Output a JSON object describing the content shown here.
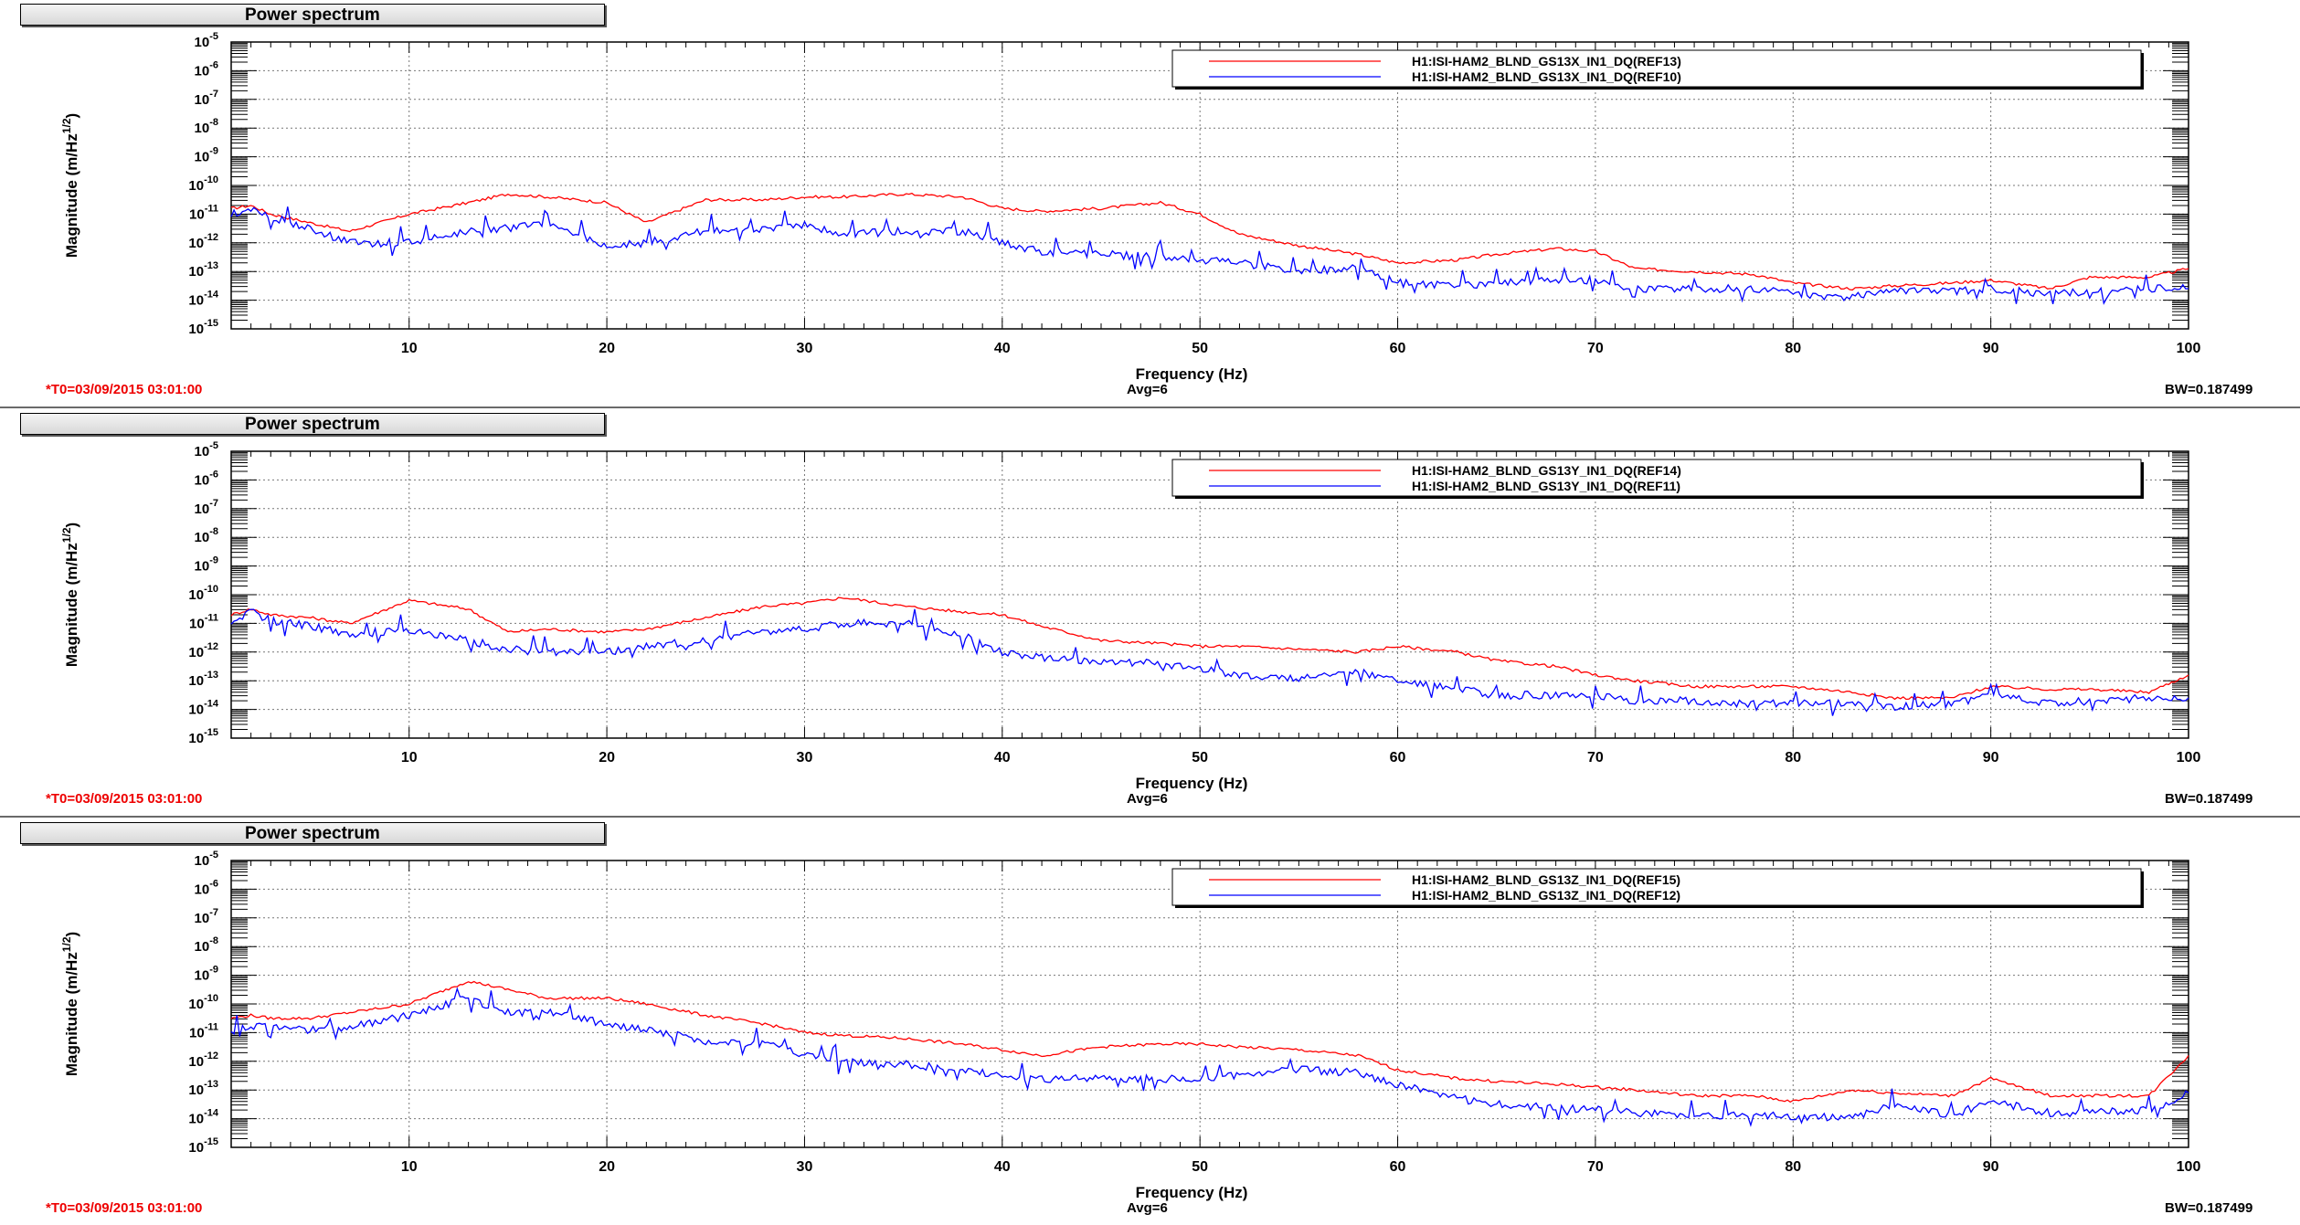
{
  "panels": [
    {
      "title": "Power spectrum",
      "footer": {
        "t0": "*T0=03/09/2015 03:01:00",
        "avg": "Avg=6",
        "bw": "BW=0.187499"
      },
      "series_names": [
        "H1:ISI-HAM2_BLND_GS13X_IN1_DQ(REF13)",
        "H1:ISI-HAM2_BLND_GS13X_IN1_DQ(REF10)"
      ]
    },
    {
      "title": "Power spectrum",
      "footer": {
        "t0": "*T0=03/09/2015 03:01:00",
        "avg": "Avg=6",
        "bw": "BW=0.187499"
      },
      "series_names": [
        "H1:ISI-HAM2_BLND_GS13Y_IN1_DQ(REF14)",
        "H1:ISI-HAM2_BLND_GS13Y_IN1_DQ(REF11)"
      ]
    },
    {
      "title": "Power spectrum",
      "footer": {
        "t0": "*T0=03/09/2015 03:01:00",
        "avg": "Avg=6",
        "bw": "BW=0.187499"
      },
      "series_names": [
        "H1:ISI-HAM2_BLND_GS13Z_IN1_DQ(REF15)",
        "H1:ISI-HAM2_BLND_GS13Z_IN1_DQ(REF12)"
      ]
    }
  ],
  "chart_data": [
    {
      "type": "line",
      "title": "Power spectrum",
      "xlabel": "Frequency (Hz)",
      "ylabel": "Magnitude (m/Hz^1/2)",
      "xlim": [
        1,
        100
      ],
      "ylim_exp": [
        -15,
        -5
      ],
      "yscale": "log",
      "grid": true,
      "legend": "top-right",
      "x_ticks": [
        10,
        20,
        30,
        40,
        50,
        60,
        70,
        80,
        90,
        100
      ],
      "y_tick_labels": [
        "10-15",
        "10-14",
        "10-13",
        "10-12",
        "10-11",
        "10-10",
        "10-9",
        "10-8",
        "10-7",
        "10-6",
        "10-5"
      ],
      "x": [
        1,
        2,
        3,
        5,
        7,
        10,
        13,
        15,
        17,
        20,
        22,
        25,
        28,
        30,
        32,
        35,
        38,
        40,
        42,
        45,
        48,
        50,
        52,
        55,
        58,
        60,
        63,
        65,
        68,
        70,
        72,
        75,
        78,
        80,
        83,
        85,
        88,
        90,
        93,
        95,
        98,
        100
      ],
      "series": [
        {
          "name": "H1:ISI-HAM2_BLND_GS13X_IN1_DQ(REF13)",
          "color": "#ff0000",
          "log10_values": [
            -10.8,
            -10.7,
            -11.0,
            -11.3,
            -11.6,
            -11.0,
            -10.6,
            -10.3,
            -10.4,
            -10.6,
            -11.3,
            -10.5,
            -10.5,
            -10.4,
            -10.4,
            -10.3,
            -10.4,
            -10.8,
            -10.9,
            -10.8,
            -10.6,
            -11.0,
            -11.7,
            -12.1,
            -12.4,
            -12.7,
            -12.6,
            -12.4,
            -12.2,
            -12.3,
            -12.9,
            -13.0,
            -13.1,
            -13.4,
            -13.6,
            -13.5,
            -13.4,
            -13.3,
            -13.6,
            -13.2,
            -13.2,
            -12.9
          ]
        },
        {
          "name": "H1:ISI-HAM2_BLND_GS13X_IN1_DQ(REF10)",
          "color": "#0000ff",
          "log10_values": [
            -11.0,
            -10.8,
            -11.1,
            -11.5,
            -12.0,
            -12.0,
            -11.6,
            -11.5,
            -11.3,
            -12.1,
            -12.0,
            -11.6,
            -11.5,
            -11.4,
            -11.7,
            -11.6,
            -11.6,
            -12.0,
            -12.3,
            -12.4,
            -12.5,
            -12.6,
            -12.7,
            -13.0,
            -12.9,
            -13.4,
            -13.5,
            -13.4,
            -13.3,
            -13.3,
            -13.6,
            -13.6,
            -13.6,
            -13.8,
            -13.9,
            -13.7,
            -13.7,
            -13.6,
            -13.8,
            -13.7,
            -13.6,
            -13.6
          ]
        }
      ]
    },
    {
      "type": "line",
      "title": "Power spectrum",
      "xlabel": "Frequency (Hz)",
      "ylabel": "Magnitude (m/Hz^1/2)",
      "xlim": [
        1,
        100
      ],
      "ylim_exp": [
        -15,
        -5
      ],
      "yscale": "log",
      "grid": true,
      "legend": "top-right",
      "x_ticks": [
        10,
        20,
        30,
        40,
        50,
        60,
        70,
        80,
        90,
        100
      ],
      "y_tick_labels": [
        "10-15",
        "10-14",
        "10-13",
        "10-12",
        "10-11",
        "10-10",
        "10-9",
        "10-8",
        "10-7",
        "10-6",
        "10-5"
      ],
      "x": [
        1,
        2,
        3,
        5,
        7,
        10,
        13,
        15,
        17,
        20,
        22,
        25,
        28,
        30,
        32,
        35,
        38,
        40,
        42,
        45,
        48,
        50,
        52,
        55,
        58,
        60,
        63,
        65,
        68,
        70,
        72,
        75,
        78,
        80,
        83,
        85,
        88,
        90,
        93,
        95,
        98,
        100
      ],
      "series": [
        {
          "name": "H1:ISI-HAM2_BLND_GS13Y_IN1_DQ(REF14)",
          "color": "#ff0000",
          "log10_values": [
            -10.7,
            -10.5,
            -10.7,
            -10.8,
            -11.0,
            -10.2,
            -10.5,
            -11.3,
            -11.2,
            -11.3,
            -11.2,
            -10.8,
            -10.4,
            -10.3,
            -10.1,
            -10.4,
            -10.6,
            -10.7,
            -11.1,
            -11.6,
            -11.7,
            -11.8,
            -11.8,
            -11.9,
            -12.0,
            -11.8,
            -12.0,
            -12.3,
            -12.5,
            -12.8,
            -13.0,
            -13.2,
            -13.2,
            -13.2,
            -13.4,
            -13.6,
            -13.6,
            -13.2,
            -13.3,
            -13.3,
            -13.4,
            -12.8
          ]
        },
        {
          "name": "H1:ISI-HAM2_BLND_GS13Y_IN1_DQ(REF11)",
          "color": "#0000ff",
          "log10_values": [
            -11.0,
            -10.6,
            -10.9,
            -11.1,
            -11.4,
            -11.2,
            -11.6,
            -11.9,
            -12.0,
            -12.0,
            -11.8,
            -11.6,
            -11.3,
            -11.2,
            -11.0,
            -11.0,
            -11.4,
            -12.0,
            -12.2,
            -12.3,
            -12.4,
            -12.6,
            -12.8,
            -12.9,
            -12.7,
            -13.0,
            -13.3,
            -13.5,
            -13.5,
            -13.5,
            -13.7,
            -13.7,
            -13.8,
            -13.8,
            -13.8,
            -13.9,
            -13.8,
            -13.5,
            -13.8,
            -13.7,
            -13.6,
            -13.6
          ]
        }
      ]
    },
    {
      "type": "line",
      "title": "Power spectrum",
      "xlabel": "Frequency (Hz)",
      "ylabel": "Magnitude (m/Hz^1/2)",
      "xlim": [
        1,
        100
      ],
      "ylim_exp": [
        -15,
        -5
      ],
      "yscale": "log",
      "grid": true,
      "legend": "top-right",
      "x_ticks": [
        10,
        20,
        30,
        40,
        50,
        60,
        70,
        80,
        90,
        100
      ],
      "y_tick_labels": [
        "10-15",
        "10-14",
        "10-13",
        "10-12",
        "10-11",
        "10-10",
        "10-9",
        "10-8",
        "10-7",
        "10-6",
        "10-5"
      ],
      "x": [
        1,
        2,
        3,
        5,
        7,
        10,
        13,
        15,
        17,
        20,
        22,
        25,
        28,
        30,
        32,
        35,
        38,
        40,
        42,
        45,
        48,
        50,
        52,
        55,
        58,
        60,
        63,
        65,
        68,
        70,
        72,
        75,
        78,
        80,
        83,
        85,
        88,
        90,
        93,
        95,
        98,
        100
      ],
      "series": [
        {
          "name": "H1:ISI-HAM2_BLND_GS13Z_IN1_DQ(REF15)",
          "color": "#ff0000",
          "log10_values": [
            -10.5,
            -10.4,
            -10.5,
            -10.5,
            -10.3,
            -10.0,
            -9.2,
            -9.5,
            -9.8,
            -9.8,
            -10.0,
            -10.4,
            -10.7,
            -11.0,
            -11.1,
            -11.2,
            -11.4,
            -11.6,
            -11.8,
            -11.5,
            -11.4,
            -11.4,
            -11.5,
            -11.6,
            -11.8,
            -12.3,
            -12.6,
            -12.7,
            -12.8,
            -12.9,
            -13.0,
            -13.2,
            -13.2,
            -13.4,
            -13.0,
            -13.1,
            -13.2,
            -12.6,
            -13.2,
            -13.2,
            -13.2,
            -11.8
          ]
        },
        {
          "name": "H1:ISI-HAM2_BLND_GS13Z_IN1_DQ(REF12)",
          "color": "#0000ff",
          "log10_values": [
            -11.0,
            -10.8,
            -10.8,
            -10.9,
            -10.8,
            -10.4,
            -9.8,
            -10.3,
            -10.3,
            -10.7,
            -10.9,
            -11.3,
            -11.4,
            -11.8,
            -12.0,
            -12.1,
            -12.3,
            -12.5,
            -12.6,
            -12.6,
            -12.6,
            -12.6,
            -12.5,
            -12.3,
            -12.4,
            -12.8,
            -13.3,
            -13.5,
            -13.6,
            -13.7,
            -13.8,
            -13.9,
            -13.9,
            -13.9,
            -14.0,
            -13.5,
            -13.9,
            -13.4,
            -13.8,
            -13.8,
            -13.7,
            -13.1
          ]
        }
      ]
    }
  ]
}
